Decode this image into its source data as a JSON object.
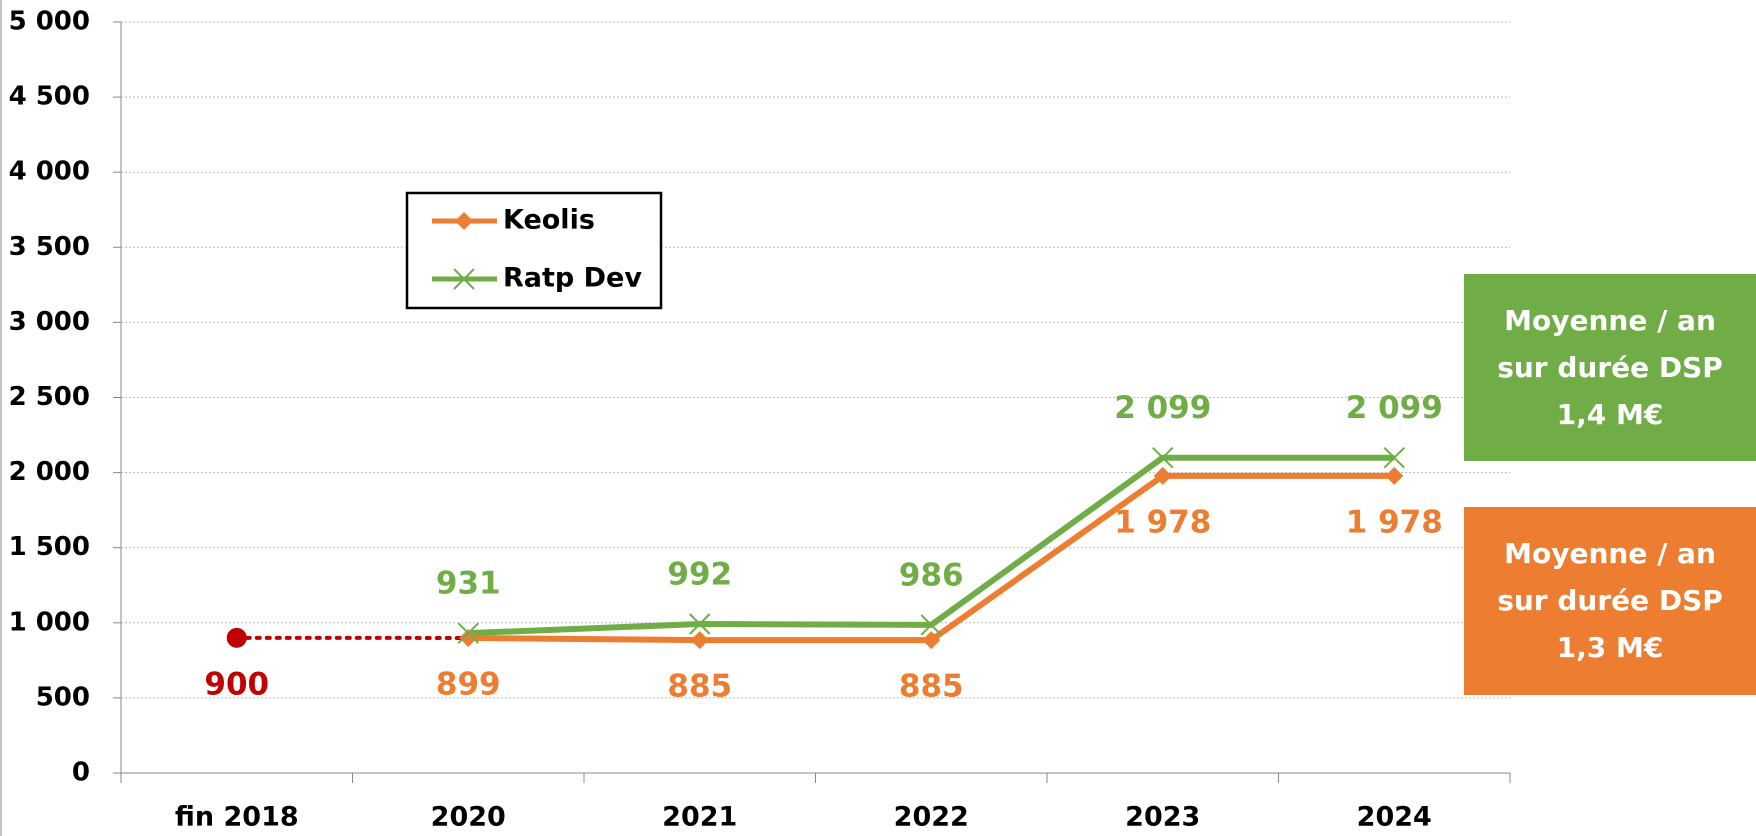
{
  "chart_data": {
    "type": "line",
    "categories": [
      "fin 2018",
      "2020",
      "2021",
      "2022",
      "2023",
      "2024"
    ],
    "series": [
      {
        "name": "Keolis",
        "color": "#ed7d31",
        "marker": "diamond",
        "values": [
          null,
          899,
          885,
          885,
          1978,
          1978
        ],
        "value_labels": [
          null,
          "899",
          "885",
          "885",
          "1 978",
          "1 978"
        ],
        "label_position": "below"
      },
      {
        "name": "Ratp Dev",
        "color": "#70ad47",
        "marker": "x",
        "values": [
          null,
          931,
          992,
          986,
          2099,
          2099
        ],
        "value_labels": [
          null,
          "931",
          "992",
          "986",
          "2 099",
          "2 099"
        ],
        "label_position": "above"
      },
      {
        "color": "#c00000",
        "marker": "circle",
        "line_style": "dotted",
        "values": [
          900,
          null,
          null,
          null,
          null,
          null
        ],
        "label_position": "below"
      }
    ],
    "ylim": [
      0,
      5000
    ],
    "yticks": [
      0,
      500,
      {
        "value": 1000,
        "label": "1 000"
      },
      {
        "value": 1500,
        "label": "1 500"
      },
      {
        "value": 2000,
        "label": "2 000"
      },
      {
        "value": 2500,
        "label": "2 500"
      },
      {
        "value": 3000,
        "label": "3 000"
      },
      {
        "value": 3500,
        "label": "3 500"
      },
      {
        "value": 4000,
        "label": "4 000"
      },
      {
        "value": 4500,
        "label": "4 500"
      },
      {
        "value": 5000,
        "label": "5 000"
      }
    ],
    "grid": true,
    "legend": "upper left",
    "annotations": [
      {
        "lines": [
          "Moyenne / an",
          "sur durée DSP",
          "1,4 M€"
        ],
        "color": "#70ad47"
      },
      {
        "lines": [
          "Moyenne / an",
          "sur durée DSP",
          "1,3 M€"
        ],
        "color": "#ed7d31"
      }
    ]
  }
}
